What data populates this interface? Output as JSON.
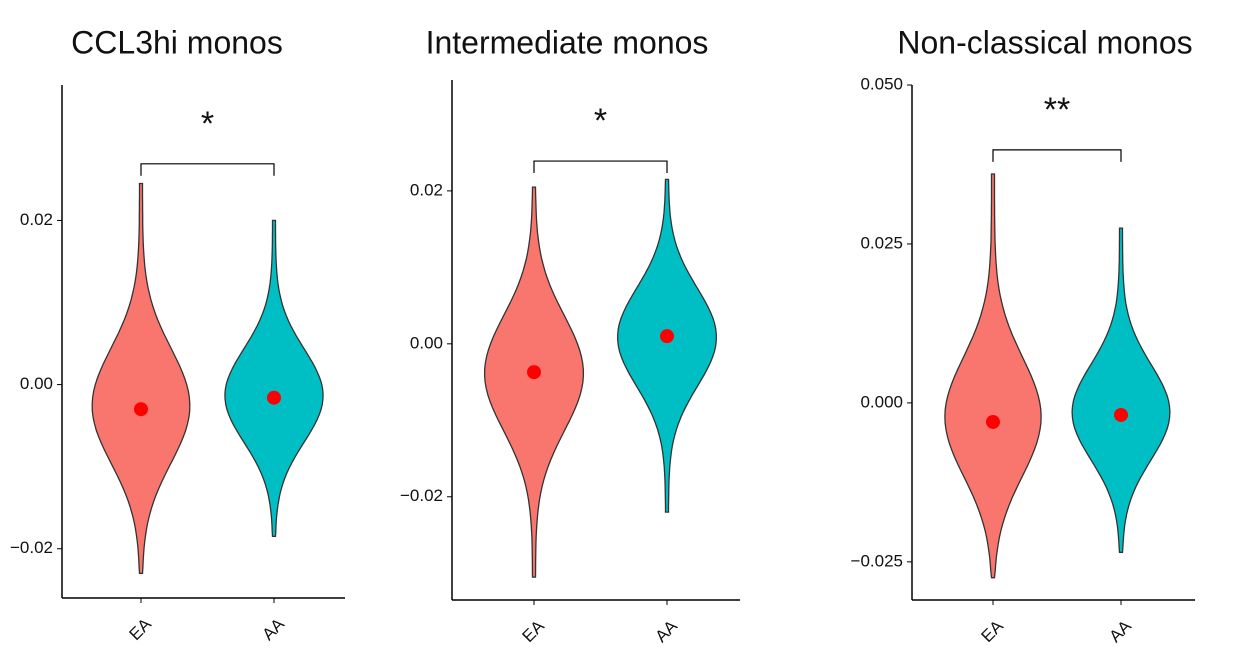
{
  "chart_data": [
    {
      "type": "violin",
      "title": "CCL3hi monos",
      "categories": [
        "EA",
        "AA"
      ],
      "colors": [
        "#f8766d",
        "#00bfc4"
      ],
      "min": [
        -0.023,
        -0.0185
      ],
      "max": [
        0.0245,
        0.02
      ],
      "mean": [
        -0.003,
        -0.0016
      ],
      "ylim": [
        -0.026,
        0.0365
      ],
      "yticks": [
        {
          "value": -0.02,
          "label": "−0.02"
        },
        {
          "value": 0,
          "label": "0.00"
        },
        0.02
      ],
      "significance": "*",
      "bracket_y": 0.0269,
      "mean_color": "#ff0000"
    },
    {
      "type": "violin",
      "title": "Intermediate monos",
      "categories": [
        "EA",
        "AA"
      ],
      "colors": [
        "#f8766d",
        "#00bfc4"
      ],
      "min": [
        -0.0305,
        -0.022
      ],
      "max": [
        0.0205,
        0.0215
      ],
      "mean": [
        -0.0037,
        0.001
      ],
      "ylim": [
        -0.0335,
        0.0345
      ],
      "yticks": [
        {
          "value": -0.02,
          "label": "−0.02"
        },
        {
          "value": 0,
          "label": "0.00"
        },
        0.02
      ],
      "significance": "*",
      "bracket_y": 0.0239,
      "mean_color": "#ff0000"
    },
    {
      "type": "violin",
      "title": "Non-classical monos",
      "categories": [
        "EA",
        "AA"
      ],
      "colors": [
        "#f8766d",
        "#00bfc4"
      ],
      "min": [
        -0.0275,
        -0.0235
      ],
      "max": [
        0.036,
        0.0275
      ],
      "mean": [
        -0.003,
        -0.0019
      ],
      "ylim": [
        -0.031,
        0.05
      ],
      "yticks": [
        {
          "value": -0.025,
          "label": "−0.025"
        },
        {
          "value": 0,
          "label": "0.000"
        },
        {
          "value": 0.025,
          "label": "0.025"
        },
        {
          "value": 0.05,
          "label": "0.050"
        }
      ],
      "significance": "**",
      "bracket_y": 0.0398,
      "mean_color": "#ff0000"
    }
  ]
}
